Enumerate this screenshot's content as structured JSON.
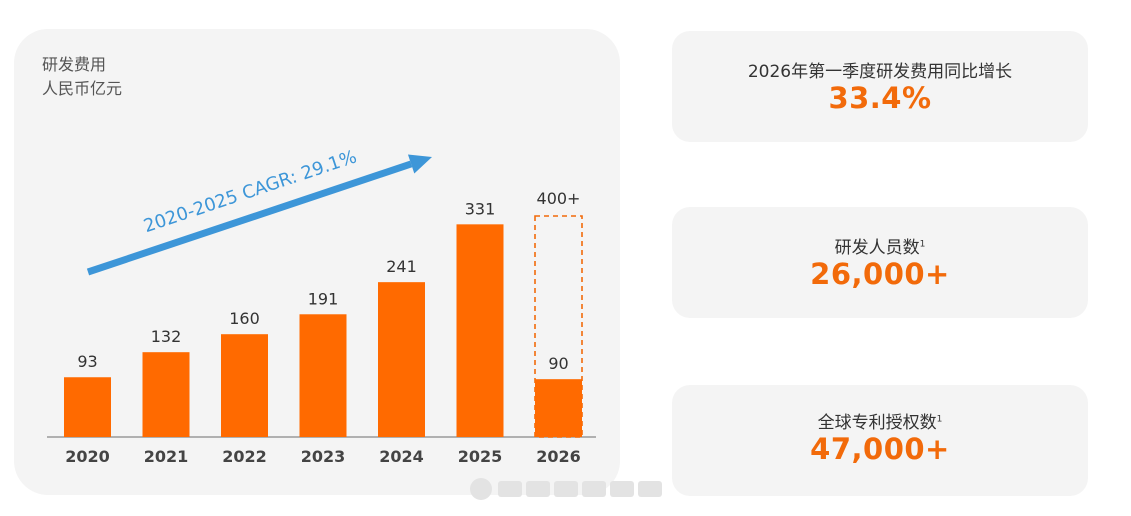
{
  "chart_data": {
    "type": "bar",
    "title_lines": [
      "研发费用",
      "人民币亿元"
    ],
    "categories": [
      "2020",
      "2021",
      "2022",
      "2023",
      "2024",
      "2025",
      "2026"
    ],
    "values": [
      93,
      132,
      160,
      191,
      241,
      331,
      90
    ],
    "value_labels": [
      "93",
      "132",
      "160",
      "191",
      "241",
      "331",
      "90"
    ],
    "target": {
      "category": "2026",
      "value": 400,
      "label": "400+",
      "style": "dashed-outline"
    },
    "annotation": "2020-2025 CAGR: 29.1%",
    "ylim": [
      0,
      480
    ],
    "grid": false,
    "colors": {
      "bar": "#ff6a00",
      "arrow": "#3d96d8",
      "target": "#f26a0a",
      "axis": "#888888"
    }
  },
  "cards": [
    {
      "label": "2026年第一季度研发费用同比增长",
      "sup": "",
      "value": "33.4%"
    },
    {
      "label": "研发人员数",
      "sup": "1",
      "value": "26,000+"
    },
    {
      "label": "全球专利授权数",
      "sup": "1",
      "value": "47,000+"
    }
  ]
}
